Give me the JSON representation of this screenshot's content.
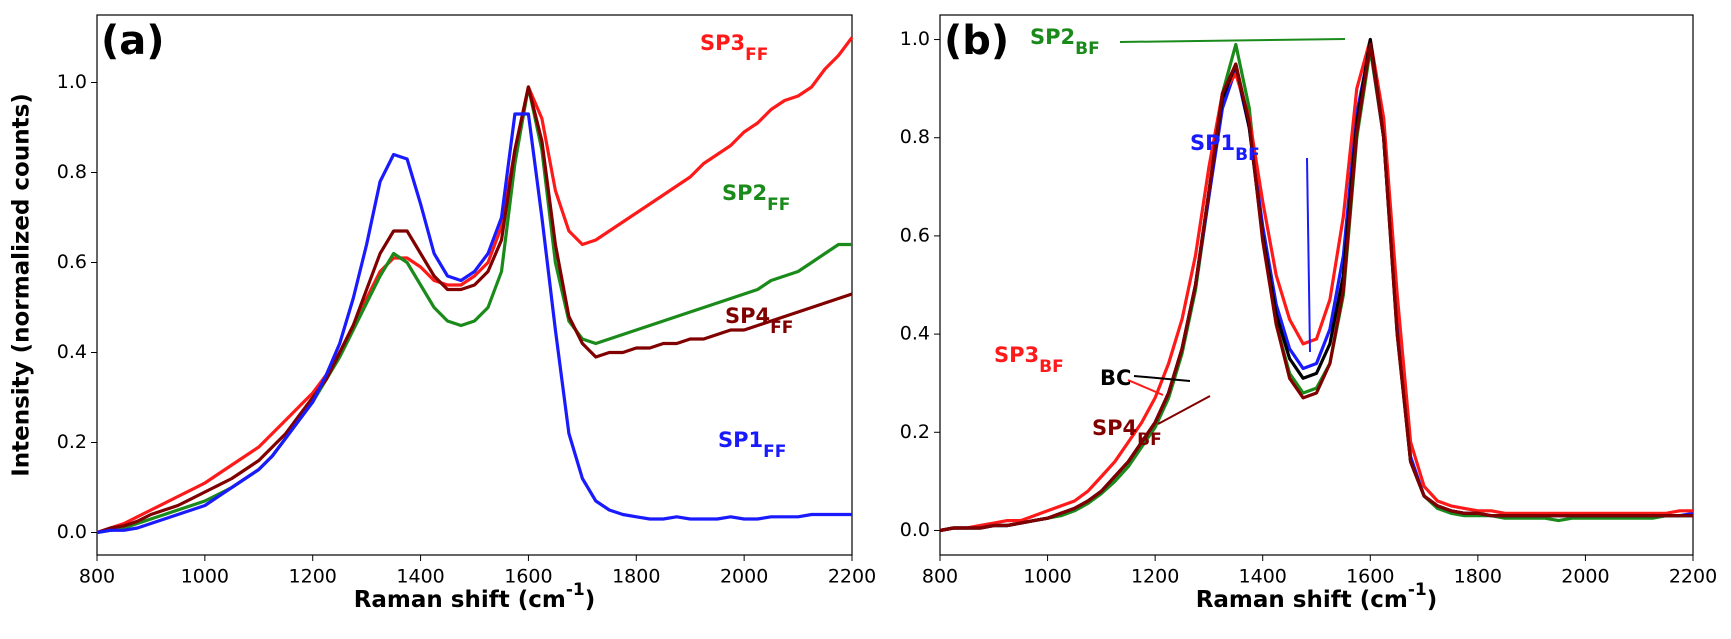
{
  "chart_data": [
    {
      "type": "line",
      "panel_label": "(a)",
      "ylabel": "Intensity (normalized counts)",
      "xlabel": [
        "Raman shift (cm",
        "-1",
        ")"
      ],
      "xlim": [
        800,
        2200
      ],
      "xticks": [
        800,
        1000,
        1200,
        1400,
        1600,
        1800,
        2000,
        2200
      ],
      "ylim": [
        -0.05,
        1.15
      ],
      "yticks": [
        {
          "value": 0,
          "label": "0.0"
        },
        0.2,
        0.4,
        0.6,
        0.8,
        {
          "value": 1,
          "label": "1.0"
        }
      ],
      "x": [
        800,
        825,
        850,
        875,
        900,
        925,
        950,
        975,
        1000,
        1025,
        1050,
        1075,
        1100,
        1125,
        1150,
        1175,
        1200,
        1225,
        1250,
        1275,
        1300,
        1325,
        1350,
        1375,
        1400,
        1425,
        1450,
        1475,
        1500,
        1525,
        1550,
        1575,
        1600,
        1625,
        1650,
        1675,
        1700,
        1725,
        1750,
        1775,
        1800,
        1825,
        1850,
        1875,
        1900,
        1925,
        1950,
        1975,
        2000,
        2025,
        2050,
        2075,
        2100,
        2125,
        2150,
        2175,
        2200
      ],
      "series": [
        {
          "name": "SP3",
          "name_sub": "FF",
          "color": "#ff1a1a",
          "values": [
            0,
            0.01,
            0.02,
            0.035,
            0.05,
            0.065,
            0.08,
            0.095,
            0.11,
            0.13,
            0.15,
            0.17,
            0.19,
            0.22,
            0.25,
            0.28,
            0.31,
            0.35,
            0.4,
            0.46,
            0.52,
            0.58,
            0.61,
            0.61,
            0.59,
            0.56,
            0.55,
            0.55,
            0.57,
            0.6,
            0.68,
            0.85,
            0.99,
            0.92,
            0.76,
            0.67,
            0.64,
            0.65,
            0.67,
            0.69,
            0.71,
            0.73,
            0.75,
            0.77,
            0.79,
            0.82,
            0.84,
            0.86,
            0.89,
            0.91,
            0.94,
            0.96,
            0.97,
            0.99,
            1.03,
            1.06,
            1.1
          ]
        },
        {
          "name": "SP2",
          "name_sub": "FF",
          "color": "#1a8a1a",
          "values": [
            0,
            0.005,
            0.01,
            0.02,
            0.03,
            0.04,
            0.05,
            0.06,
            0.07,
            0.085,
            0.1,
            0.12,
            0.14,
            0.17,
            0.21,
            0.25,
            0.29,
            0.34,
            0.39,
            0.45,
            0.51,
            0.57,
            0.62,
            0.6,
            0.55,
            0.5,
            0.47,
            0.46,
            0.47,
            0.5,
            0.58,
            0.82,
            0.99,
            0.85,
            0.6,
            0.47,
            0.43,
            0.42,
            0.43,
            0.44,
            0.45,
            0.46,
            0.47,
            0.48,
            0.49,
            0.5,
            0.51,
            0.52,
            0.53,
            0.54,
            0.56,
            0.57,
            0.58,
            0.6,
            0.62,
            0.64,
            0.64
          ]
        },
        {
          "name": "SP4",
          "name_sub": "FF",
          "color": "#800000",
          "values": [
            0,
            0.01,
            0.015,
            0.025,
            0.04,
            0.05,
            0.06,
            0.075,
            0.09,
            0.105,
            0.12,
            0.14,
            0.16,
            0.19,
            0.22,
            0.26,
            0.3,
            0.34,
            0.4,
            0.46,
            0.54,
            0.62,
            0.67,
            0.67,
            0.62,
            0.57,
            0.54,
            0.54,
            0.55,
            0.58,
            0.65,
            0.85,
            0.99,
            0.87,
            0.64,
            0.48,
            0.42,
            0.39,
            0.4,
            0.4,
            0.41,
            0.41,
            0.42,
            0.42,
            0.43,
            0.43,
            0.44,
            0.45,
            0.45,
            0.46,
            0.47,
            0.48,
            0.49,
            0.5,
            0.51,
            0.52,
            0.53
          ]
        },
        {
          "name": "SP1",
          "name_sub": "FF",
          "color": "#1a1aff",
          "values": [
            0,
            0.005,
            0.005,
            0.01,
            0.02,
            0.03,
            0.04,
            0.05,
            0.06,
            0.08,
            0.1,
            0.12,
            0.14,
            0.17,
            0.21,
            0.25,
            0.29,
            0.35,
            0.42,
            0.52,
            0.64,
            0.78,
            0.84,
            0.83,
            0.73,
            0.62,
            0.57,
            0.56,
            0.58,
            0.62,
            0.7,
            0.93,
            0.93,
            0.7,
            0.45,
            0.22,
            0.12,
            0.07,
            0.05,
            0.04,
            0.035,
            0.03,
            0.03,
            0.035,
            0.03,
            0.03,
            0.03,
            0.035,
            0.03,
            0.03,
            0.035,
            0.035,
            0.035,
            0.04,
            0.04,
            0.04,
            0.04
          ]
        }
      ]
    },
    {
      "type": "line",
      "panel_label": "(b)",
      "xlabel": [
        "Raman shift (cm",
        "-1",
        ")"
      ],
      "xlim": [
        800,
        2200
      ],
      "xticks": [
        800,
        1000,
        1200,
        1400,
        1600,
        1800,
        2000,
        2200
      ],
      "ylim": [
        -0.05,
        1.05
      ],
      "yticks": [
        {
          "value": 0,
          "label": "0.0"
        },
        0.2,
        0.4,
        0.6,
        0.8,
        {
          "value": 1,
          "label": "1.0"
        }
      ],
      "x": [
        800,
        825,
        850,
        875,
        900,
        925,
        950,
        975,
        1000,
        1025,
        1050,
        1075,
        1100,
        1125,
        1150,
        1175,
        1200,
        1225,
        1250,
        1275,
        1300,
        1325,
        1350,
        1375,
        1400,
        1425,
        1450,
        1475,
        1500,
        1525,
        1550,
        1575,
        1600,
        1625,
        1650,
        1675,
        1700,
        1725,
        1750,
        1775,
        1800,
        1825,
        1850,
        1875,
        1900,
        1925,
        1950,
        1975,
        2000,
        2025,
        2050,
        2075,
        2100,
        2125,
        2150,
        2175,
        2200
      ],
      "series": [
        {
          "name": "SP2",
          "name_sub": "BF",
          "color": "#1a8a1a",
          "values": [
            0,
            0.005,
            0.005,
            0.005,
            0.01,
            0.01,
            0.015,
            0.02,
            0.025,
            0.03,
            0.04,
            0.055,
            0.075,
            0.1,
            0.13,
            0.17,
            0.21,
            0.27,
            0.36,
            0.49,
            0.68,
            0.89,
            0.99,
            0.86,
            0.6,
            0.42,
            0.32,
            0.28,
            0.29,
            0.34,
            0.48,
            0.8,
            0.98,
            0.8,
            0.42,
            0.14,
            0.07,
            0.045,
            0.035,
            0.03,
            0.03,
            0.03,
            0.025,
            0.025,
            0.025,
            0.025,
            0.02,
            0.025,
            0.025,
            0.025,
            0.025,
            0.025,
            0.025,
            0.025,
            0.03,
            0.03,
            0.03
          ]
        },
        {
          "name": "SP1",
          "name_sub": "BF",
          "color": "#1a1aff",
          "values": [
            0,
            0.005,
            0.005,
            0.005,
            0.01,
            0.01,
            0.015,
            0.02,
            0.025,
            0.035,
            0.045,
            0.06,
            0.08,
            0.11,
            0.14,
            0.18,
            0.22,
            0.28,
            0.37,
            0.5,
            0.68,
            0.86,
            0.94,
            0.82,
            0.62,
            0.46,
            0.37,
            0.33,
            0.34,
            0.41,
            0.56,
            0.85,
            0.99,
            0.8,
            0.42,
            0.15,
            0.07,
            0.05,
            0.04,
            0.035,
            0.035,
            0.03,
            0.03,
            0.03,
            0.03,
            0.03,
            0.03,
            0.03,
            0.03,
            0.03,
            0.03,
            0.03,
            0.03,
            0.03,
            0.03,
            0.03,
            0.035
          ]
        },
        {
          "name": "SP3",
          "name_sub": "BF",
          "color": "#ff1a1a",
          "values": [
            0,
            0.005,
            0.005,
            0.01,
            0.015,
            0.02,
            0.02,
            0.03,
            0.04,
            0.05,
            0.06,
            0.08,
            0.11,
            0.14,
            0.18,
            0.22,
            0.27,
            0.34,
            0.43,
            0.56,
            0.74,
            0.89,
            0.93,
            0.84,
            0.67,
            0.52,
            0.43,
            0.38,
            0.39,
            0.47,
            0.64,
            0.9,
            1.0,
            0.84,
            0.48,
            0.18,
            0.09,
            0.06,
            0.05,
            0.045,
            0.04,
            0.04,
            0.035,
            0.035,
            0.035,
            0.035,
            0.035,
            0.035,
            0.035,
            0.035,
            0.035,
            0.035,
            0.035,
            0.035,
            0.035,
            0.04,
            0.04
          ]
        },
        {
          "name": "BC",
          "color": "#000000",
          "values": [
            0,
            0.005,
            0.005,
            0.005,
            0.01,
            0.01,
            0.015,
            0.02,
            0.025,
            0.035,
            0.045,
            0.06,
            0.08,
            0.11,
            0.14,
            0.18,
            0.22,
            0.28,
            0.37,
            0.5,
            0.69,
            0.88,
            0.95,
            0.82,
            0.6,
            0.44,
            0.35,
            0.31,
            0.32,
            0.38,
            0.52,
            0.83,
            1.0,
            0.8,
            0.4,
            0.14,
            0.07,
            0.05,
            0.04,
            0.035,
            0.035,
            0.03,
            0.03,
            0.03,
            0.03,
            0.03,
            0.03,
            0.03,
            0.03,
            0.03,
            0.03,
            0.03,
            0.03,
            0.03,
            0.03,
            0.03,
            0.03
          ]
        },
        {
          "name": "SP4",
          "name_sub": "BF",
          "color": "#800000",
          "values": [
            0,
            0.005,
            0.005,
            0.005,
            0.01,
            0.01,
            0.015,
            0.02,
            0.025,
            0.035,
            0.045,
            0.06,
            0.08,
            0.11,
            0.14,
            0.18,
            0.22,
            0.28,
            0.37,
            0.5,
            0.69,
            0.89,
            0.95,
            0.83,
            0.59,
            0.42,
            0.31,
            0.27,
            0.28,
            0.34,
            0.49,
            0.81,
            0.99,
            0.8,
            0.4,
            0.14,
            0.07,
            0.05,
            0.04,
            0.035,
            0.035,
            0.03,
            0.03,
            0.03,
            0.03,
            0.03,
            0.03,
            0.03,
            0.03,
            0.03,
            0.03,
            0.03,
            0.03,
            0.03,
            0.03,
            0.03,
            0.03
          ]
        }
      ]
    }
  ]
}
